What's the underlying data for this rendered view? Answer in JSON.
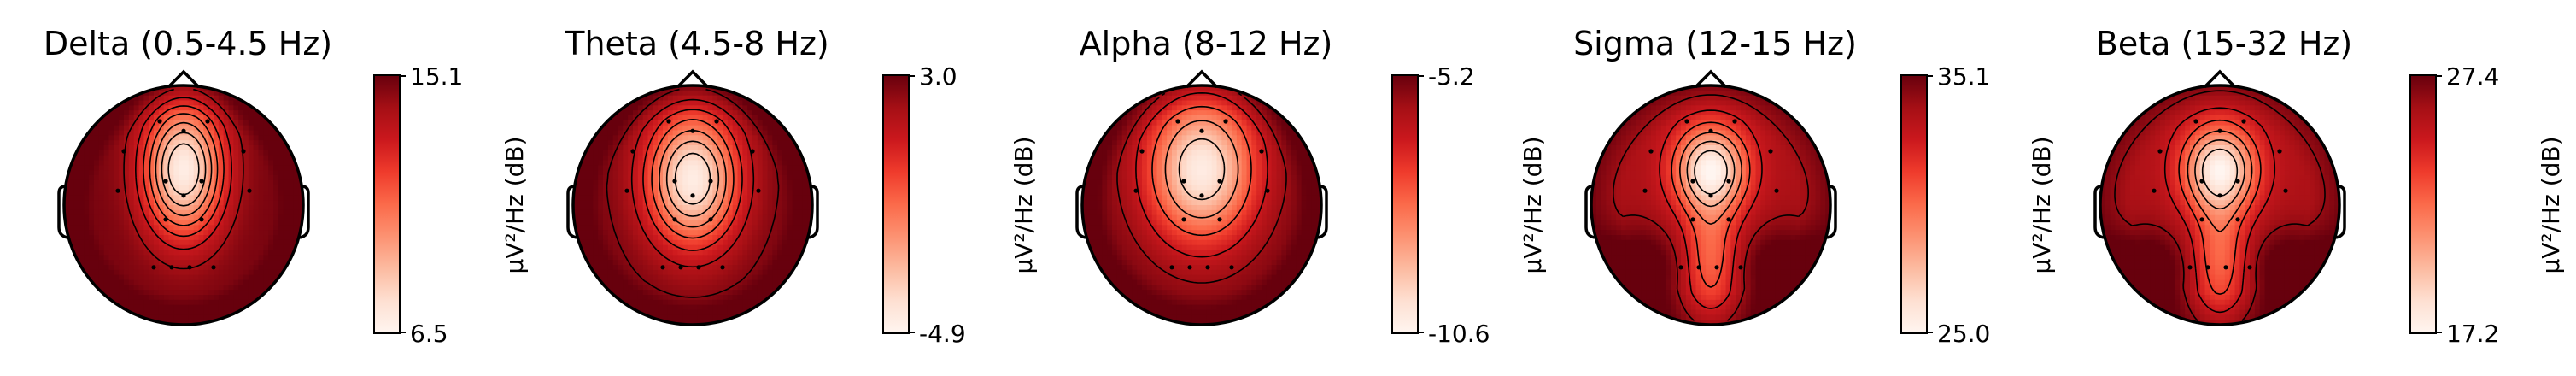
{
  "chart_data": {
    "type": "heatmap",
    "subtype": "eeg-topographic-map",
    "colormap": "Reds",
    "colorbar_label": "µV²/Hz (dB)",
    "panels": [
      {
        "title": "Delta (0.5-4.5 Hz)",
        "colorbar": {
          "max_label": "15.1",
          "min_label": "6.5",
          "vmax": 15.1,
          "vmin": 6.5
        },
        "pattern": {
          "peak": [
            0.0,
            -0.3
          ],
          "peak_value": 6.9,
          "peak_width": [
            0.33,
            0.55
          ],
          "posterior_bump": 0.0,
          "edge_value": 14.8
        },
        "contours": [
          8.0,
          9.0,
          10.0,
          11.0,
          12.0,
          13.0,
          14.0
        ],
        "dashed_below": null
      },
      {
        "title": "Theta (4.5-8 Hz)",
        "colorbar": {
          "max_label": "3.0",
          "min_label": "-4.9",
          "vmax": 3.0,
          "vmin": -4.9
        },
        "pattern": {
          "peak": [
            0.0,
            -0.22
          ],
          "peak_value": -4.5,
          "peak_width": [
            0.38,
            0.55
          ],
          "posterior_bump": 0.0,
          "edge_value": 2.7
        },
        "contours": [
          -3.5,
          -2.5,
          -1.5,
          -0.5,
          0.5,
          1.5,
          2.5
        ],
        "dashed_below": 0.0
      },
      {
        "title": "Alpha (8-12 Hz)",
        "colorbar": {
          "max_label": "-5.2",
          "min_label": "-10.6",
          "vmax": -5.2,
          "vmin": -10.6
        },
        "pattern": {
          "peak": [
            0.0,
            -0.3
          ],
          "peak_value": -10.3,
          "peak_width": [
            0.45,
            0.6
          ],
          "posterior_bump": 0.0,
          "edge_value": -5.4
        },
        "contours": [
          -9.5,
          -8.5,
          -7.5,
          -6.5,
          -5.8
        ],
        "dashed_below": -6.0
      },
      {
        "title": "Sigma (12-15 Hz)",
        "colorbar": {
          "max_label": "35.1",
          "min_label": "25.0",
          "vmax": 35.1,
          "vmin": 25.0
        },
        "pattern": {
          "peak": [
            0.0,
            -0.3
          ],
          "peak_value": 25.2,
          "peak_width": [
            0.3,
            0.36
          ],
          "posterior_bump": 1.0,
          "edge_value": 33.6
        },
        "contours": [
          26.5,
          28.0,
          29.5,
          31.0,
          32.5,
          34.0
        ],
        "dashed_below": null
      },
      {
        "title": "Beta (15-32 Hz)",
        "colorbar": {
          "max_label": "27.4",
          "min_label": "17.2",
          "vmax": 27.4,
          "vmin": 17.2
        },
        "pattern": {
          "peak": [
            0.0,
            -0.3
          ],
          "peak_value": 17.5,
          "peak_width": [
            0.3,
            0.36
          ],
          "posterior_bump": 1.0,
          "edge_value": 25.8
        },
        "contours": [
          19.0,
          20.5,
          22.0,
          23.5,
          25.0,
          26.5
        ],
        "dashed_below": null
      }
    ],
    "sensors": [
      [
        -0.2,
        -0.7
      ],
      [
        0.2,
        -0.7
      ],
      [
        0.0,
        -0.62
      ],
      [
        -0.5,
        -0.45
      ],
      [
        0.5,
        -0.45
      ],
      [
        -0.15,
        -0.2
      ],
      [
        0.15,
        -0.2
      ],
      [
        0.0,
        -0.08
      ],
      [
        -0.55,
        -0.12
      ],
      [
        0.55,
        -0.12
      ],
      [
        -0.15,
        0.12
      ],
      [
        0.15,
        0.12
      ],
      [
        -0.25,
        0.52
      ],
      [
        -0.1,
        0.52
      ],
      [
        0.05,
        0.52
      ],
      [
        0.25,
        0.52
      ]
    ]
  }
}
